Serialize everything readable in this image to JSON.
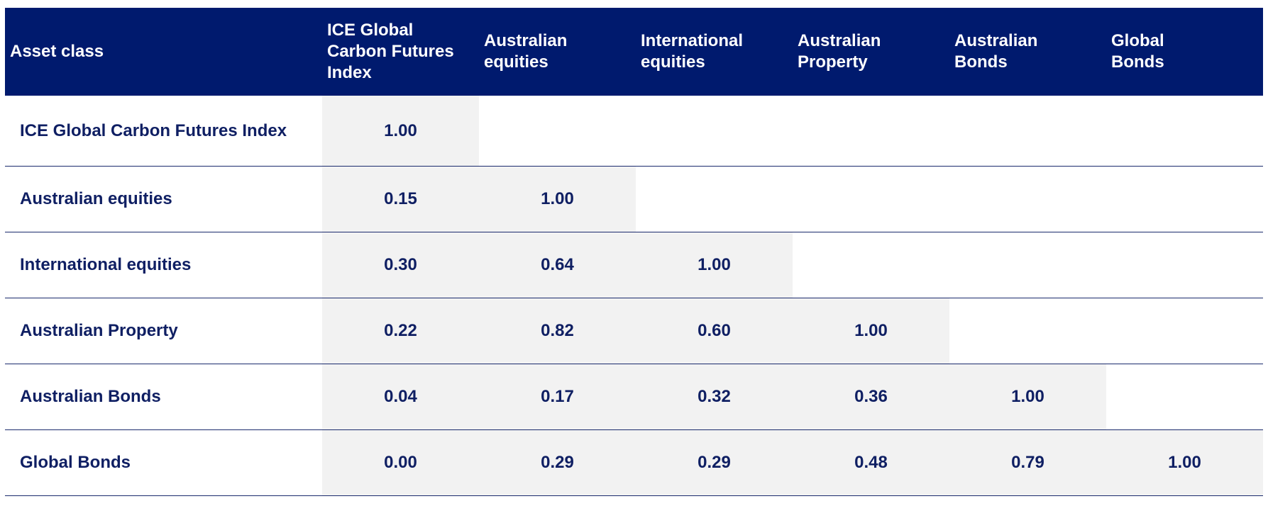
{
  "chart_data": {
    "type": "table",
    "columns": [
      "Asset class",
      "ICE Global\nCarbon Futures\nIndex",
      "Australian\nequities",
      "International\nequities",
      "Australian\nProperty",
      "Australian\nBonds",
      "Global\nBonds"
    ],
    "rows": [
      {
        "label": "ICE Global Carbon Futures Index",
        "values": [
          "1.00",
          "",
          "",
          "",
          "",
          ""
        ]
      },
      {
        "label": "Australian equities",
        "values": [
          "0.15",
          "1.00",
          "",
          "",
          "",
          ""
        ]
      },
      {
        "label": "International equities",
        "values": [
          "0.30",
          "0.64",
          "1.00",
          "",
          "",
          ""
        ]
      },
      {
        "label": "Australian Property",
        "values": [
          "0.22",
          "0.82",
          "0.60",
          "1.00",
          "",
          ""
        ]
      },
      {
        "label": "Australian Bonds",
        "values": [
          "0.04",
          "0.17",
          "0.32",
          "0.36",
          "1.00",
          ""
        ]
      },
      {
        "label": "Global Bonds",
        "values": [
          "0.00",
          "0.29",
          "0.29",
          "0.48",
          "0.79",
          "1.00"
        ]
      }
    ]
  },
  "colors": {
    "header_bg": "#001a6e",
    "header_text": "#ffffff",
    "body_text": "#0f1f63",
    "cell_fill": "#f2f2f2",
    "row_border": "#1a2a6c"
  }
}
